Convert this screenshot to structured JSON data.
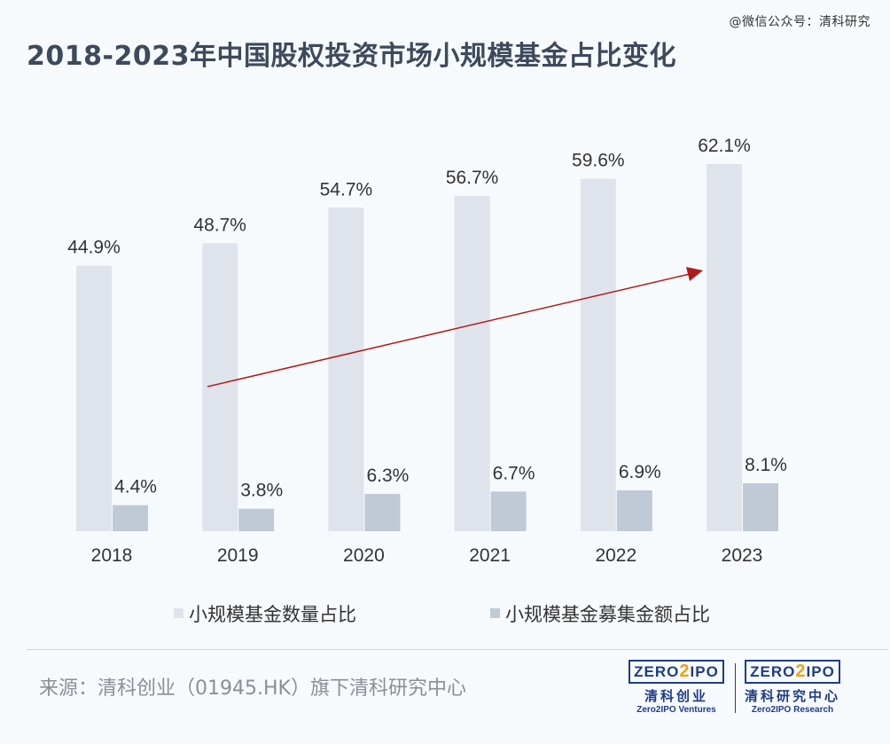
{
  "watermark": "@微信公众号：清科研究",
  "title": "2018-2023年中国股权投资市场小规模基金占比变化",
  "source": "来源：清科创业（01945.HK）旗下清科研究中心",
  "logos": [
    {
      "brand": "ZERO2IPO",
      "cn": "清科创业",
      "en": "Zero2IPO Ventures"
    },
    {
      "brand": "ZERO2IPO",
      "cn": "清科研究中心",
      "en": "Zero2IPO Research"
    }
  ],
  "colors": {
    "series1": "#dfe3ec",
    "series2": "#c0c9d6",
    "trend_arrow": "#b01c1c",
    "title": "#3d4a5c",
    "brand": "#1f3c88"
  },
  "chart_data": {
    "type": "bar",
    "categories": [
      "2018",
      "2019",
      "2020",
      "2021",
      "2022",
      "2023"
    ],
    "series": [
      {
        "name": "小规模基金数量占比",
        "values": [
          44.9,
          48.7,
          54.7,
          56.7,
          59.6,
          62.1
        ],
        "labels": [
          "44.9%",
          "48.7%",
          "54.7%",
          "56.7%",
          "59.6%",
          "62.1%"
        ]
      },
      {
        "name": "小规模基金募集金额占比",
        "values": [
          4.4,
          3.8,
          6.3,
          6.7,
          6.9,
          8.1
        ],
        "labels": [
          "4.4%",
          "3.8%",
          "6.3%",
          "6.7%",
          "6.9%",
          "8.1%"
        ]
      }
    ],
    "ylim": [
      0,
      75
    ],
    "grid": false,
    "legend": "bottom-center",
    "trend_arrow": true
  }
}
